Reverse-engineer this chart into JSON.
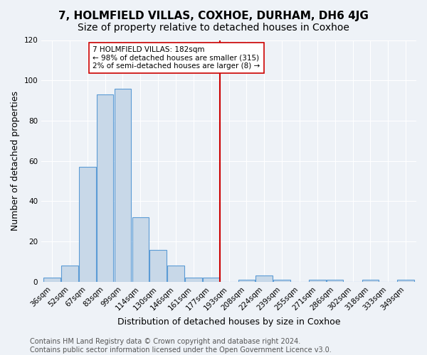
{
  "title": "7, HOLMFIELD VILLAS, COXHOE, DURHAM, DH6 4JG",
  "subtitle": "Size of property relative to detached houses in Coxhoe",
  "xlabel": "Distribution of detached houses by size in Coxhoe",
  "ylabel": "Number of detached properties",
  "bar_values": [
    2,
    8,
    57,
    93,
    96,
    32,
    16,
    8,
    2,
    2,
    0,
    1,
    3,
    1,
    0,
    1,
    1,
    0,
    1,
    0,
    1
  ],
  "bar_labels": [
    "36sqm",
    "52sqm",
    "67sqm",
    "83sqm",
    "99sqm",
    "114sqm",
    "130sqm",
    "146sqm",
    "161sqm",
    "177sqm",
    "193sqm",
    "208sqm",
    "224sqm",
    "239sqm",
    "255sqm",
    "271sqm",
    "286sqm",
    "302sqm",
    "318sqm",
    "333sqm",
    "349sqm"
  ],
  "bar_color": "#c8d8e8",
  "bar_edge_color": "#5b9bd5",
  "property_line_x": 9.5,
  "annotation_text": "7 HOLMFIELD VILLAS: 182sqm\n← 98% of detached houses are smaller (315)\n2% of semi-detached houses are larger (8) →",
  "vline_color": "#cc0000",
  "annotation_box_edge_color": "#cc0000",
  "ylim": [
    0,
    120
  ],
  "yticks": [
    0,
    20,
    40,
    60,
    80,
    100,
    120
  ],
  "footer": "Contains HM Land Registry data © Crown copyright and database right 2024.\nContains public sector information licensed under the Open Government Licence v3.0.",
  "background_color": "#eef2f7",
  "plot_bg_color": "#eef2f7",
  "title_fontsize": 11,
  "subtitle_fontsize": 10,
  "axis_label_fontsize": 9,
  "tick_fontsize": 7.5,
  "footer_fontsize": 7
}
